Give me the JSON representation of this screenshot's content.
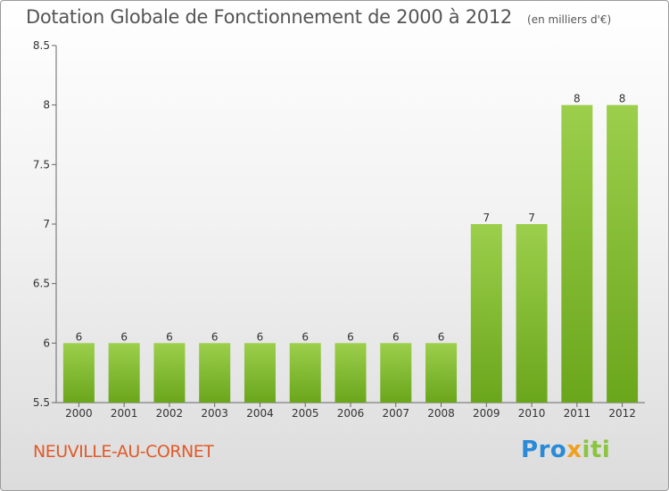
{
  "header": {
    "title": "Dotation Globale de Fonctionnement de 2000 à 2012",
    "subtitle": "(en milliers d'€)"
  },
  "footer": {
    "commune": "NEUVILLE-AU-CORNET",
    "brand": "Proxiti"
  },
  "colors": {
    "bar_light": "#9ccf4c",
    "bar_dark": "#6aa61c",
    "commune_text": "#e05a2a"
  },
  "chart_data": {
    "type": "bar",
    "categories": [
      "2000",
      "2001",
      "2002",
      "2003",
      "2004",
      "2005",
      "2006",
      "2007",
      "2008",
      "2009",
      "2010",
      "2011",
      "2012"
    ],
    "values": [
      6,
      6,
      6,
      6,
      6,
      6,
      6,
      6,
      6,
      7,
      7,
      8,
      8
    ],
    "data_labels": [
      "6",
      "6",
      "6",
      "6",
      "6",
      "6",
      "6",
      "6",
      "6",
      "7",
      "7",
      "8",
      "8"
    ],
    "title": "Dotation Globale de Fonctionnement de 2000 à 2012",
    "subtitle": "(en milliers d'€)",
    "xlabel": "",
    "ylabel": "",
    "ylim": [
      5.5,
      8.5
    ],
    "yticks": [
      5.5,
      6,
      6.5,
      7,
      7.5,
      8,
      8.5
    ],
    "ytick_labels": [
      "5.5",
      "6",
      "6.5",
      "7",
      "7.5",
      "8",
      "8.5"
    ],
    "grid": false,
    "legend": "none"
  }
}
